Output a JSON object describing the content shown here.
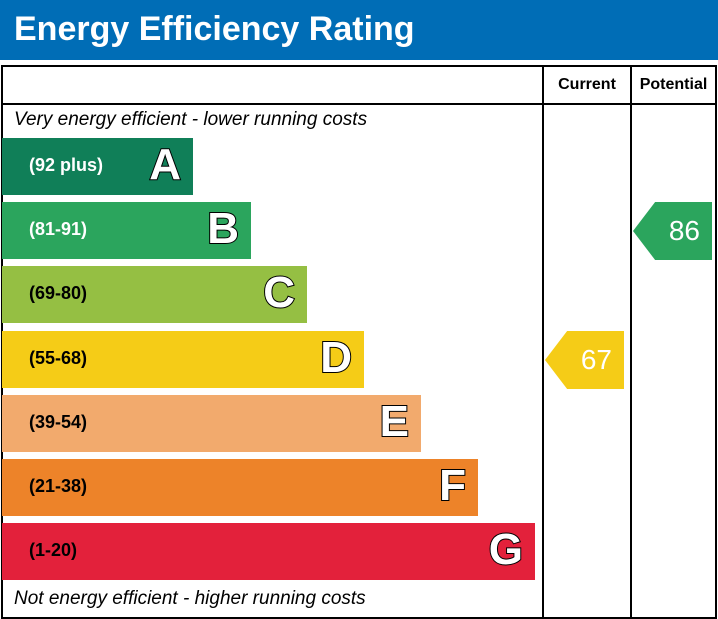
{
  "chart_data": {
    "type": "table",
    "title": "Energy Efficiency Rating",
    "columns": [
      "Current",
      "Potential"
    ],
    "top_note": "Very energy efficient - lower running costs",
    "bottom_note": "Not energy efficient - higher running costs",
    "bands": [
      {
        "letter": "A",
        "range": "(92 plus)",
        "color": "#107f58",
        "text_color": "#ffffff"
      },
      {
        "letter": "B",
        "range": "(81-91)",
        "color": "#2ba55d",
        "text_color": "#ffffff"
      },
      {
        "letter": "C",
        "range": "(69-80)",
        "color": "#95bf43",
        "text_color": "#000000"
      },
      {
        "letter": "D",
        "range": "(55-68)",
        "color": "#f5cc17",
        "text_color": "#000000"
      },
      {
        "letter": "E",
        "range": "(39-54)",
        "color": "#f2aa6d",
        "text_color": "#000000"
      },
      {
        "letter": "F",
        "range": "(21-38)",
        "color": "#ed8329",
        "text_color": "#000000"
      },
      {
        "letter": "G",
        "range": "(1-20)",
        "color": "#e3213b",
        "text_color": "#000000"
      }
    ],
    "current": {
      "value": "67",
      "band": "D"
    },
    "potential": {
      "value": "86",
      "band": "B"
    }
  }
}
